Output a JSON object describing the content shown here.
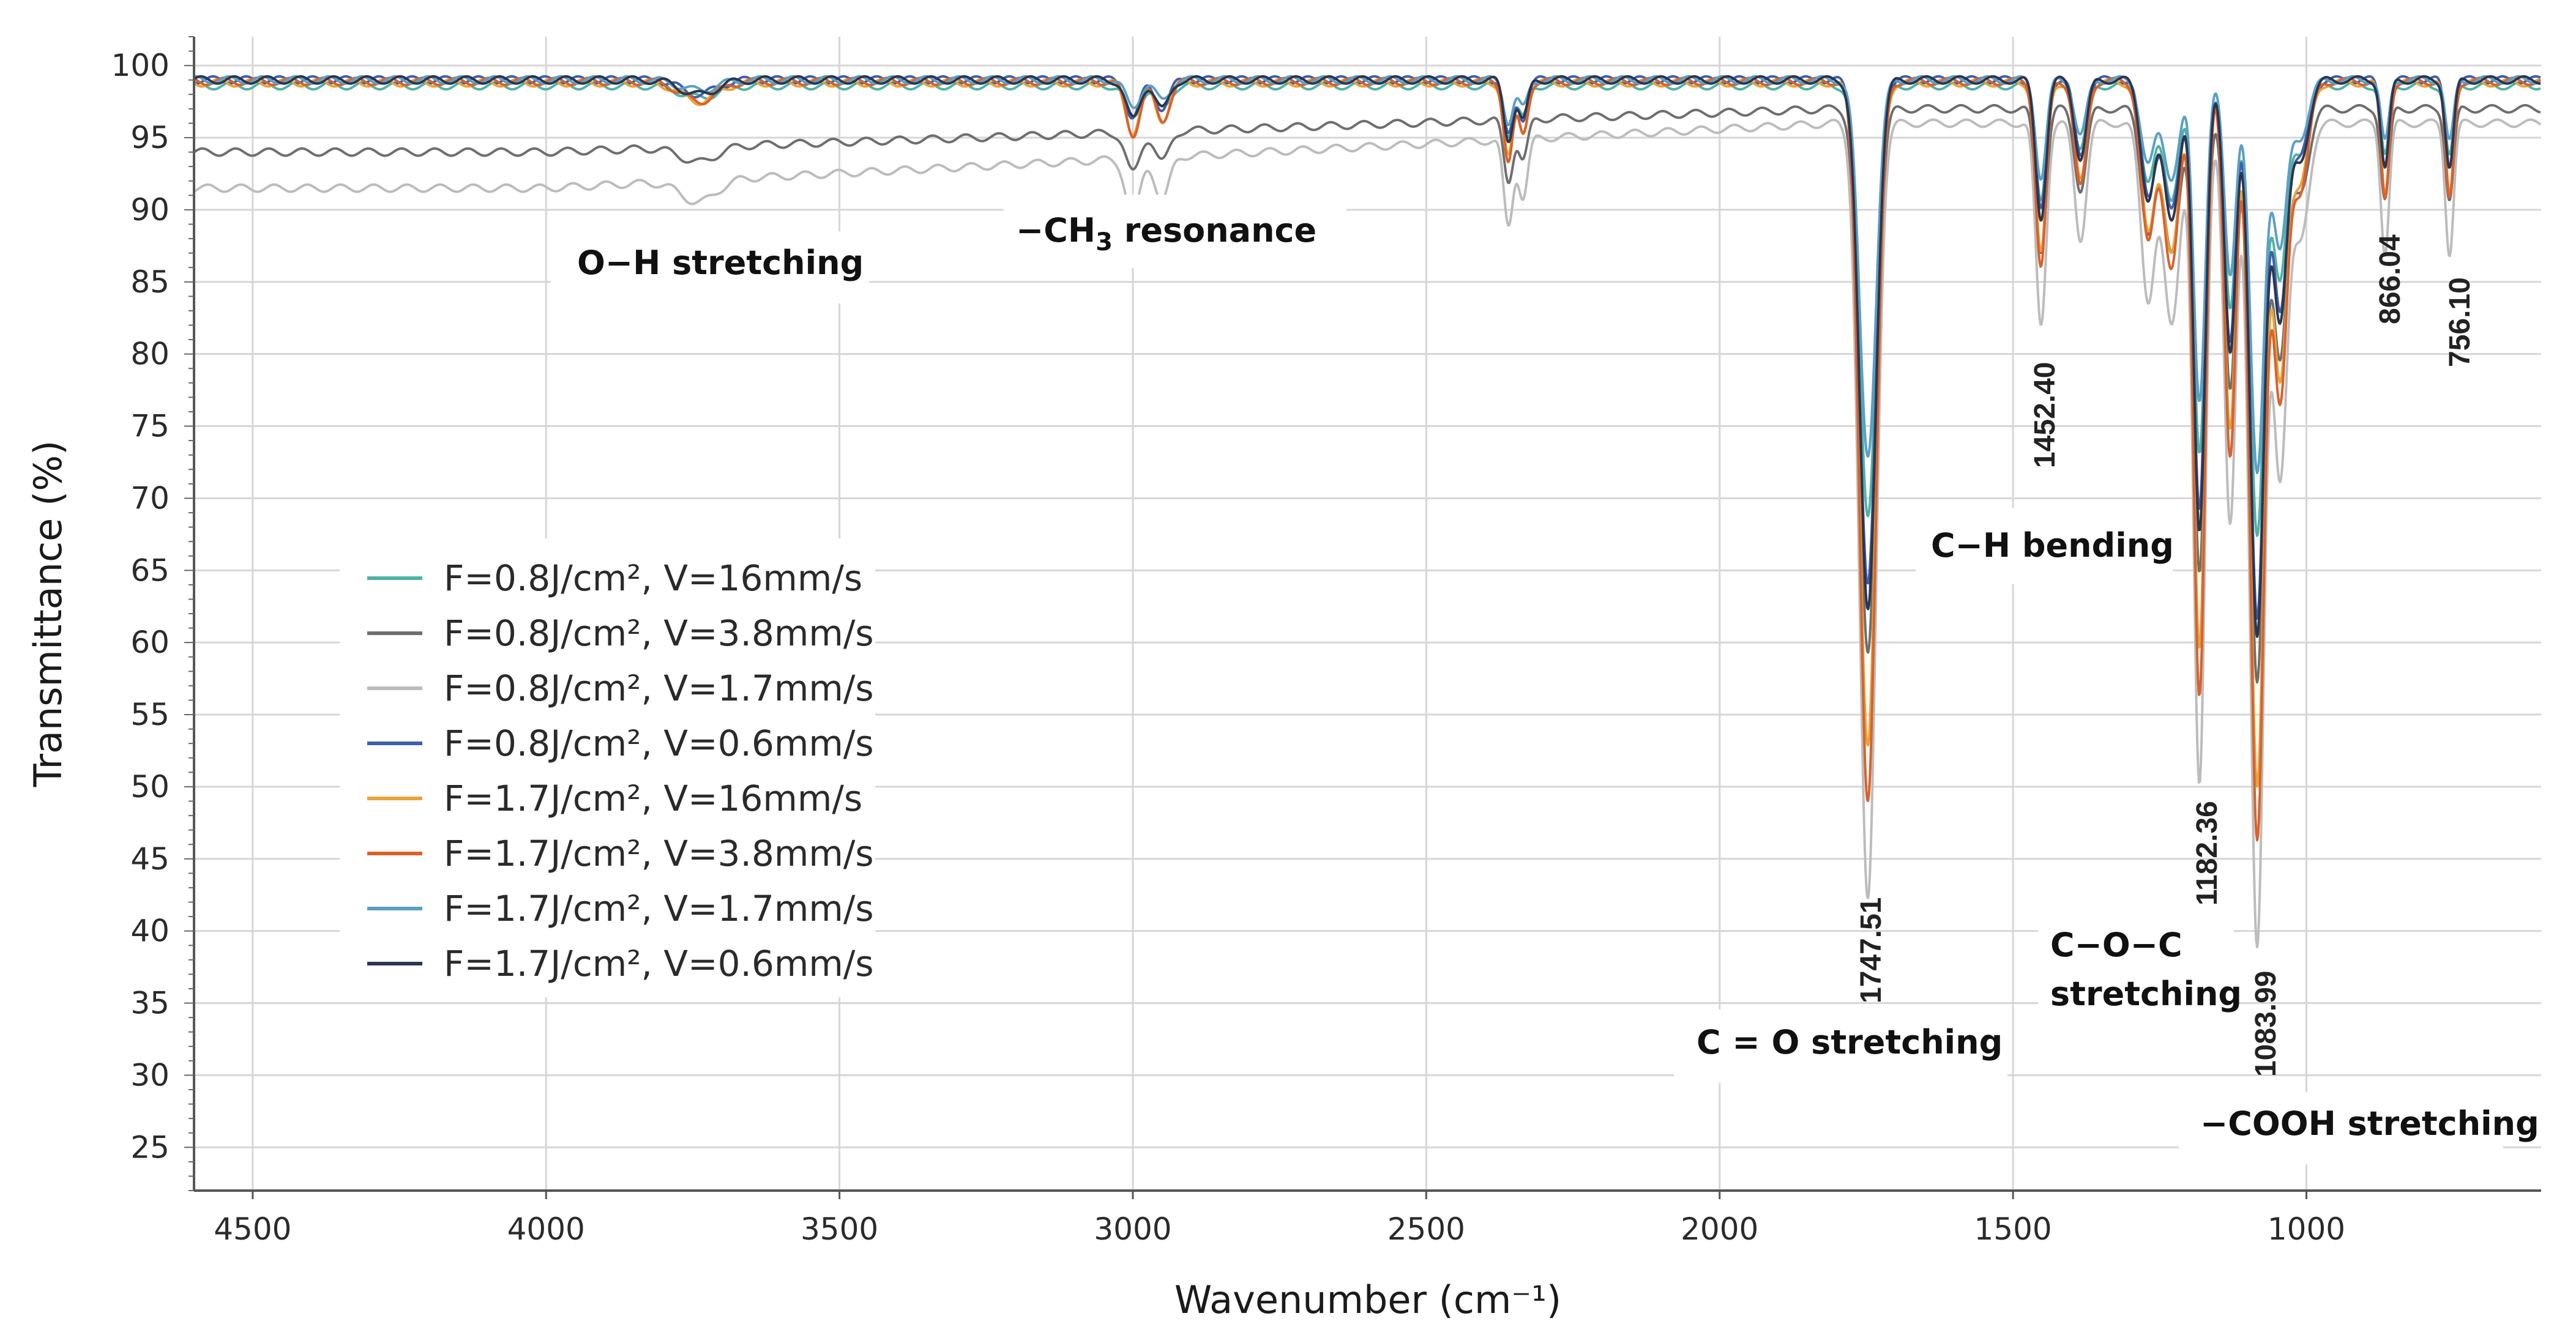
{
  "chart_data": {
    "type": "line",
    "xlabel": "Wavenumber (cm⁻¹)",
    "ylabel": "Transmittance (%)",
    "xlim": [
      4600,
      600
    ],
    "ylim": [
      22,
      102
    ],
    "x_ticks": [
      4500,
      4000,
      3500,
      3000,
      2500,
      2000,
      1500,
      1000
    ],
    "y_ticks": [
      25,
      30,
      35,
      40,
      45,
      50,
      55,
      60,
      65,
      70,
      75,
      80,
      85,
      90,
      95,
      100
    ],
    "grid": true,
    "legend_position": "center-left",
    "series": [
      {
        "name": "F=0.8J/cm², V=16mm/s",
        "color": "#4fb3a3",
        "base": 98.6,
        "scale": 0.55
      },
      {
        "name": "F=0.8J/cm², V=3.8mm/s",
        "color": "#6e6e6e",
        "base": 97.0,
        "scale": 0.7,
        "low_shift": 3.0
      },
      {
        "name": "F=0.8J/cm², V=1.7mm/s",
        "color": "#bcbcbc",
        "base": 96.0,
        "scale": 1.0,
        "low_shift": 4.5
      },
      {
        "name": "F=0.8J/cm², V=0.6mm/s",
        "color": "#3f5fa8",
        "base": 99.0,
        "scale": 0.65
      },
      {
        "name": "F=1.7J/cm², V=16mm/s",
        "color": "#e8a33a",
        "base": 98.8,
        "scale": 0.85
      },
      {
        "name": "F=1.7J/cm², V=3.8mm/s",
        "color": "#d9622b",
        "base": 98.9,
        "scale": 0.92
      },
      {
        "name": "F=1.7J/cm², V=1.7mm/s",
        "color": "#5b9fc4",
        "base": 99.0,
        "scale": 0.48
      },
      {
        "name": "F=1.7J/cm², V=0.6mm/s",
        "color": "#2b3550",
        "base": 99.0,
        "scale": 0.68
      }
    ],
    "bands": [
      {
        "center": 1747.51,
        "width": 14,
        "depth": 54
      },
      {
        "center": 1452.4,
        "width": 9,
        "depth": 14
      },
      {
        "center": 1385,
        "width": 10,
        "depth": 8
      },
      {
        "center": 1270,
        "width": 12,
        "depth": 12
      },
      {
        "center": 1230,
        "width": 14,
        "depth": 14
      },
      {
        "center": 1182.36,
        "width": 10,
        "depth": 46
      },
      {
        "center": 1130,
        "width": 10,
        "depth": 28
      },
      {
        "center": 1083.99,
        "width": 12,
        "depth": 57
      },
      {
        "center": 1045,
        "width": 12,
        "depth": 24
      },
      {
        "center": 1010,
        "width": 14,
        "depth": 8
      },
      {
        "center": 866.04,
        "width": 7,
        "depth": 9
      },
      {
        "center": 756.1,
        "width": 7,
        "depth": 9
      },
      {
        "center": 3000,
        "width": 12,
        "depth": 4
      },
      {
        "center": 2950,
        "width": 12,
        "depth": 3
      },
      {
        "center": 2360,
        "width": 8,
        "depth": 6
      },
      {
        "center": 2335,
        "width": 8,
        "depth": 4
      },
      {
        "center": 3740,
        "width": 30,
        "depth": 1.5
      }
    ],
    "peak_labels": [
      "1747.51",
      "1452.40",
      "1182.36",
      "1083.99",
      "866.04",
      "756.10"
    ],
    "annotations": {
      "oh": "O−H stretching",
      "ch3_prefix": "−CH",
      "ch3_sub": "3",
      "ch3_suffix": " resonance",
      "ch_bend": "C−H bending",
      "co": "C = O stretching",
      "coc_line1": "C−O−C",
      "coc_line2": "stretching",
      "cooh": "−COOH stretching"
    }
  }
}
